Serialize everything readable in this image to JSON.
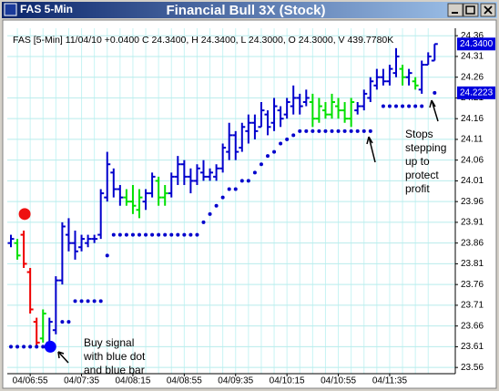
{
  "window_title": "FAS 5-Min",
  "chart_data": {
    "type": "ohlc",
    "title": "Financial Bull 3X (Stock)",
    "subtitle": "FAS [5-Min] 11/04/10 +0.0400 C 24.3400, H 24.3400, L 24.3000, O 24.3000, V 439.7780K",
    "categories": [
      null,
      null,
      null,
      "04/06:55",
      null,
      null,
      null,
      null,
      null,
      null,
      null,
      "04/07:35",
      null,
      null,
      null,
      null,
      null,
      null,
      null,
      "04/08:15",
      null,
      null,
      null,
      null,
      null,
      null,
      null,
      "04/08:55",
      null,
      null,
      null,
      null,
      null,
      null,
      null,
      "04/09:35",
      null,
      null,
      null,
      null,
      null,
      null,
      null,
      "04/10:15",
      null,
      null,
      null,
      null,
      null,
      null,
      null,
      "04/10:55",
      null,
      null,
      null,
      null,
      null,
      null,
      null,
      "04/11:35",
      null,
      null,
      null,
      null,
      null,
      null,
      null
    ],
    "open": [
      23.86,
      23.86,
      23.88,
      23.79,
      23.67,
      23.63,
      23.62,
      23.65,
      23.77,
      23.88,
      23.86,
      23.85,
      23.86,
      23.87,
      23.88,
      23.97,
      24.03,
      23.99,
      23.97,
      23.96,
      23.94,
      23.96,
      23.98,
      24.01,
      23.97,
      23.98,
      24.02,
      24.05,
      24.02,
      24.01,
      24.03,
      24.02,
      24.02,
      24.04,
      24.08,
      24.12,
      24.09,
      24.13,
      24.15,
      24.14,
      24.17,
      24.15,
      24.18,
      24.17,
      24.19,
      24.21,
      24.2,
      24.2,
      24.16,
      24.18,
      24.17,
      24.19,
      24.18,
      24.16,
      24.18,
      24.19,
      24.21,
      24.24,
      24.26,
      24.25,
      24.27,
      24.28,
      24.26,
      24.25,
      24.23,
      24.29,
      24.3
    ],
    "high": [
      23.88,
      23.87,
      23.89,
      23.8,
      23.68,
      23.7,
      23.68,
      23.78,
      23.91,
      23.92,
      23.89,
      23.88,
      23.88,
      23.88,
      23.99,
      24.08,
      24.04,
      24.0,
      23.99,
      24.0,
      23.99,
      23.99,
      24.03,
      24.02,
      24.0,
      24.03,
      24.07,
      24.06,
      24.04,
      24.05,
      24.06,
      24.04,
      24.05,
      24.1,
      24.15,
      24.13,
      24.15,
      24.17,
      24.17,
      24.2,
      24.18,
      24.21,
      24.19,
      24.21,
      24.24,
      24.22,
      24.23,
      24.22,
      24.21,
      24.2,
      24.22,
      24.21,
      24.2,
      24.21,
      24.2,
      24.23,
      24.26,
      24.28,
      24.28,
      24.29,
      24.33,
      24.29,
      24.28,
      24.26,
      24.3,
      24.32,
      24.34
    ],
    "low": [
      23.85,
      23.82,
      23.8,
      23.69,
      23.61,
      23.62,
      23.61,
      23.64,
      23.76,
      23.84,
      23.82,
      23.84,
      23.85,
      23.86,
      23.87,
      23.96,
      23.97,
      23.95,
      23.95,
      23.93,
      23.92,
      23.94,
      23.97,
      23.95,
      23.95,
      23.97,
      24.0,
      24.0,
      23.98,
      24.0,
      24.01,
      24.01,
      24.01,
      24.03,
      24.06,
      24.06,
      24.08,
      24.1,
      24.11,
      24.14,
      24.12,
      24.13,
      24.14,
      24.16,
      24.17,
      24.17,
      24.19,
      24.14,
      24.15,
      24.16,
      24.16,
      24.16,
      24.15,
      24.14,
      24.17,
      24.18,
      24.2,
      24.23,
      24.24,
      24.24,
      24.26,
      24.24,
      24.24,
      24.23,
      24.22,
      24.29,
      24.3
    ],
    "close": [
      23.87,
      23.83,
      23.81,
      23.7,
      23.62,
      23.69,
      23.67,
      23.77,
      23.9,
      23.86,
      23.84,
      23.87,
      23.87,
      23.87,
      23.98,
      24.05,
      23.99,
      23.97,
      23.96,
      23.95,
      23.97,
      23.98,
      24.02,
      23.97,
      23.98,
      24.02,
      24.05,
      24.02,
      24.01,
      24.04,
      24.02,
      24.03,
      24.04,
      24.09,
      24.12,
      24.08,
      24.14,
      24.15,
      24.13,
      24.18,
      24.14,
      24.19,
      24.16,
      24.2,
      24.21,
      24.19,
      24.21,
      24.16,
      24.19,
      24.17,
      24.2,
      24.18,
      24.16,
      24.2,
      24.19,
      24.22,
      24.25,
      24.26,
      24.25,
      24.28,
      24.31,
      24.26,
      24.27,
      24.24,
      24.29,
      24.31,
      24.34
    ],
    "bar_colors": [
      "b",
      "g",
      "r",
      "r",
      "r",
      "g",
      "b",
      "b",
      "b",
      "b",
      "b",
      "b",
      "b",
      "b",
      "b",
      "b",
      "b",
      "b",
      "g",
      "g",
      "g",
      "b",
      "b",
      "g",
      "g",
      "b",
      "b",
      "b",
      "b",
      "b",
      "b",
      "b",
      "b",
      "b",
      "b",
      "b",
      "b",
      "b",
      "b",
      "b",
      "b",
      "b",
      "b",
      "b",
      "b",
      "b",
      "b",
      "g",
      "g",
      "g",
      "g",
      "g",
      "g",
      "g",
      "b",
      "b",
      "b",
      "b",
      "b",
      "b",
      "b",
      "g",
      "b",
      "g",
      "b",
      "b",
      "b"
    ],
    "palette": {
      "b": "#0000cc",
      "g": "#00e000",
      "r": "#ee0000"
    },
    "stops": [
      23.61,
      23.61,
      23.61,
      23.61,
      23.61,
      23.61,
      23.61,
      null,
      23.67,
      23.67,
      23.72,
      23.72,
      23.72,
      23.72,
      23.72,
      23.83,
      23.88,
      23.88,
      23.88,
      23.88,
      23.88,
      23.88,
      23.88,
      23.88,
      23.88,
      23.88,
      23.88,
      23.88,
      23.88,
      23.88,
      23.91,
      23.93,
      23.95,
      23.97,
      23.99,
      23.99,
      24.01,
      24.01,
      24.03,
      24.05,
      24.07,
      24.08,
      24.1,
      24.11,
      24.12,
      24.13,
      24.13,
      24.13,
      24.13,
      24.13,
      24.13,
      24.13,
      24.13,
      24.13,
      24.13,
      24.13,
      24.13,
      null,
      24.19,
      24.19,
      24.19,
      24.19,
      24.19,
      24.19,
      24.19,
      null,
      24.2223
    ],
    "stop_color": "#0000cc",
    "signals": [
      {
        "index": 2,
        "value": 23.93,
        "color": "#ee1111"
      },
      {
        "index": 6,
        "value": 23.61,
        "color": "#0000ff"
      }
    ],
    "price_labels": [
      {
        "value": 24.34,
        "label": "24.3400"
      },
      {
        "value": 24.2223,
        "label": "24.2223"
      }
    ],
    "ylim": [
      23.545,
      24.378
    ],
    "yticks": [
      23.56,
      23.61,
      23.66,
      23.71,
      23.76,
      23.81,
      23.86,
      23.91,
      23.96,
      24.01,
      24.06,
      24.11,
      24.16,
      24.21,
      24.26,
      24.31,
      24.36
    ],
    "grid": true,
    "annotations": [
      [
        "Buy signal",
        "with blue dot",
        "and blue bar"
      ],
      [
        "Stops",
        "stepping",
        "up to",
        "protect",
        "profit"
      ]
    ]
  }
}
